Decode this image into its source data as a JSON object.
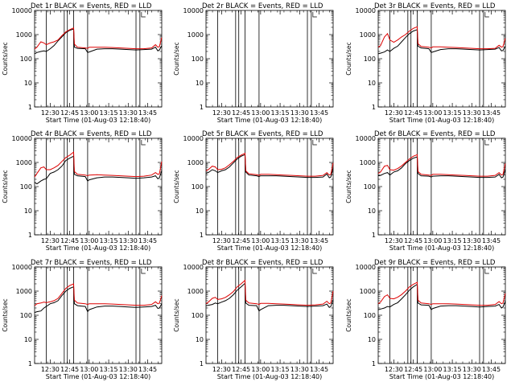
{
  "chart_data": {
    "type": "line",
    "layout": "3x3 grid",
    "shared": {
      "xlabel": "Start Time (01-Aug-03 12:18:40)",
      "ylabel": "Counts/sec",
      "yscale": "log",
      "ylim": [
        1,
        10000
      ],
      "ytick_values": [
        1,
        10,
        100,
        1000,
        10000
      ],
      "ytick_labels": [
        "1",
        "10",
        "100",
        "1000",
        "10000"
      ],
      "xlim": [
        12.3,
        13.93
      ],
      "xtick_values": [
        12.5,
        12.75,
        13.0,
        13.25,
        13.5,
        13.75
      ],
      "xtick_labels": [
        "12:30",
        "12:45",
        "13:00",
        "13:15",
        "13:30",
        "13:45"
      ],
      "legend": "in title",
      "series_names": [
        "Events",
        "LLD"
      ],
      "series_colors": {
        "Events": "#000000",
        "LLD": "#dd0000"
      },
      "vertical_markers_hours": [
        12.45,
        12.68,
        12.72,
        12.8,
        12.98,
        13.6,
        13.65
      ],
      "x_hours": [
        12.3,
        12.33,
        12.38,
        12.42,
        12.45,
        12.5,
        12.55,
        12.6,
        12.65,
        12.7,
        12.75,
        12.8,
        12.81,
        12.85,
        12.95,
        12.98,
        13.0,
        13.1,
        13.2,
        13.3,
        13.4,
        13.5,
        13.6,
        13.7,
        13.8,
        13.85,
        13.88,
        13.9,
        13.93
      ]
    },
    "panels": [
      {
        "title": "Det 1r BLACK = Events, RED = LLD",
        "series": [
          {
            "name": "Events",
            "values": [
              160,
              180,
              200,
              210,
              200,
              260,
              350,
              550,
              800,
              1200,
              1500,
              1700,
              300,
              270,
              260,
              180,
              190,
              250,
              260,
              260,
              250,
              240,
              230,
              240,
              250,
              300,
              210,
              230,
              350
            ]
          },
          {
            "name": "LLD",
            "values": [
              250,
              300,
              500,
              450,
              380,
              450,
              500,
              600,
              900,
              1300,
              1600,
              1900,
              400,
              300,
              280,
              270,
              300,
              300,
              300,
              290,
              280,
              270,
              260,
              260,
              280,
              380,
              300,
              320,
              750
            ]
          }
        ]
      },
      {
        "title": "Det 2r BLACK = Events, RED = LLD",
        "series": []
      },
      {
        "title": "Det 3r BLACK = Events, RED = LLD",
        "series": [
          {
            "name": "Events",
            "values": [
              160,
              170,
              190,
              230,
              200,
              270,
              330,
              500,
              750,
              1100,
              1400,
              1600,
              330,
              280,
              260,
              180,
              190,
              240,
              260,
              260,
              250,
              240,
              230,
              240,
              250,
              290,
              210,
              220,
              330
            ]
          },
          {
            "name": "LLD",
            "values": [
              300,
              350,
              800,
              1100,
              600,
              480,
              600,
              800,
              1000,
              1400,
              1800,
              2100,
              420,
              320,
              300,
              280,
              310,
              310,
              300,
              290,
              280,
              270,
              260,
              260,
              270,
              360,
              300,
              320,
              700
            ]
          }
        ]
      },
      {
        "title": "Det 4r BLACK = Events, RED = LLD",
        "series": [
          {
            "name": "Events",
            "values": [
              150,
              130,
              170,
              200,
              210,
              350,
              400,
              500,
              700,
              1200,
              1500,
              1800,
              320,
              280,
              260,
              170,
              190,
              230,
              250,
              250,
              240,
              230,
              220,
              230,
              250,
              280,
              210,
              230,
              460
            ]
          },
          {
            "name": "LLD",
            "values": [
              250,
              350,
              600,
              650,
              500,
              500,
              600,
              750,
              1100,
              1600,
              2000,
              2700,
              420,
              320,
              300,
              280,
              300,
              310,
              300,
              290,
              280,
              270,
              260,
              270,
              300,
              380,
              320,
              340,
              1100
            ]
          }
        ]
      },
      {
        "title": "Det 5r BLACK = Events, RED = LLD",
        "series": [
          {
            "name": "Events",
            "values": [
              350,
              380,
              500,
              450,
              380,
              450,
              500,
              650,
              950,
              1400,
              1800,
              2100,
              400,
              300,
              280,
              260,
              280,
              280,
              280,
              270,
              260,
              250,
              240,
              240,
              250,
              330,
              230,
              250,
              600
            ]
          },
          {
            "name": "LLD",
            "values": [
              450,
              500,
              700,
              650,
              500,
              520,
              600,
              800,
              1100,
              1600,
              2000,
              2400,
              450,
              340,
              310,
              290,
              320,
              320,
              310,
              300,
              290,
              280,
              270,
              270,
              290,
              380,
              300,
              320,
              950
            ]
          }
        ]
      },
      {
        "title": "Det 6r BLACK = Events, RED = LLD",
        "series": [
          {
            "name": "Events",
            "values": [
              280,
              290,
              350,
              380,
              300,
              400,
              450,
              600,
              900,
              1200,
              1500,
              1700,
              350,
              280,
              270,
              250,
              270,
              280,
              280,
              270,
              260,
              250,
              240,
              240,
              250,
              320,
              230,
              250,
              520
            ]
          },
          {
            "name": "LLD",
            "values": [
              350,
              400,
              700,
              750,
              500,
              480,
              560,
              720,
              1000,
              1400,
              1800,
              2100,
              420,
              320,
              300,
              290,
              320,
              320,
              310,
              300,
              290,
              280,
              270,
              270,
              290,
              380,
              300,
              320,
              900
            ]
          }
        ]
      },
      {
        "title": "Det 7r BLACK = Events, RED = LLD",
        "series": [
          {
            "name": "Events",
            "values": [
              130,
              140,
              150,
              200,
              230,
              300,
              330,
              400,
              650,
              1000,
              1300,
              1500,
              300,
              250,
              230,
              140,
              170,
              220,
              240,
              240,
              230,
              220,
              210,
              220,
              230,
              260,
              190,
              200,
              300
            ]
          },
          {
            "name": "LLD",
            "values": [
              250,
              300,
              320,
              350,
              330,
              360,
              400,
              500,
              800,
              1300,
              1700,
              2000,
              420,
              320,
              300,
              280,
              300,
              300,
              300,
              290,
              280,
              270,
              260,
              260,
              280,
              360,
              300,
              320,
              650
            ]
          }
        ]
      },
      {
        "title": "Det 8r BLACK = Events, RED = LLD",
        "series": [
          {
            "name": "Events",
            "values": [
              250,
              260,
              280,
              320,
              300,
              350,
              400,
              500,
              700,
              1100,
              1500,
              2100,
              320,
              260,
              250,
              150,
              170,
              250,
              260,
              260,
              250,
              240,
              230,
              240,
              250,
              290,
              210,
              230,
              450
            ]
          },
          {
            "name": "LLD",
            "values": [
              300,
              350,
              500,
              550,
              450,
              480,
              550,
              700,
              950,
              1500,
              2000,
              2800,
              420,
              320,
              300,
              280,
              310,
              310,
              300,
              290,
              280,
              270,
              260,
              270,
              290,
              380,
              300,
              320,
              1000
            ]
          }
        ]
      },
      {
        "title": "Det 9r BLACK = Events, RED = LLD",
        "series": [
          {
            "name": "Events",
            "values": [
              170,
              180,
              200,
              230,
              220,
              280,
              330,
              480,
              700,
              1100,
              1500,
              1900,
              320,
              270,
              260,
              170,
              190,
              240,
              250,
              250,
              240,
              230,
              220,
              230,
              240,
              280,
              200,
              220,
              380
            ]
          },
          {
            "name": "LLD",
            "values": [
              300,
              350,
              600,
              700,
              500,
              480,
              560,
              720,
              1000,
              1500,
              1900,
              2300,
              420,
              320,
              300,
              280,
              300,
              300,
              300,
              290,
              280,
              270,
              260,
              260,
              280,
              370,
              300,
              320,
              800
            ]
          }
        ]
      }
    ]
  }
}
